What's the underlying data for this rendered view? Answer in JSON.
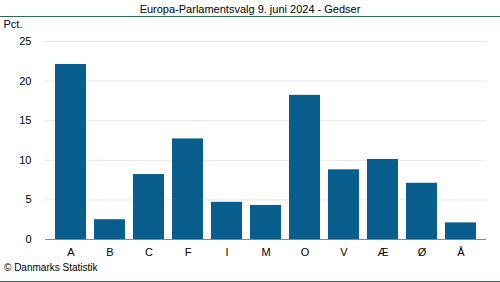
{
  "chart_data": {
    "type": "bar",
    "title": "Europa-Parlamentsvalg 9. juni 2024 - Gedser",
    "y_label": "Pct.",
    "caption": "© Danmarks Statistik",
    "categories": [
      "A",
      "B",
      "C",
      "F",
      "I",
      "M",
      "O",
      "V",
      "Æ",
      "Ø",
      "Å"
    ],
    "values": [
      22.1,
      2.5,
      8.2,
      12.7,
      4.7,
      4.3,
      18.2,
      8.8,
      10.1,
      7.1,
      2.1
    ],
    "color": "#0a5e8e",
    "ylim": [
      0,
      25
    ],
    "yticks": [
      0,
      5,
      10,
      15,
      20,
      25
    ],
    "grid": true
  }
}
